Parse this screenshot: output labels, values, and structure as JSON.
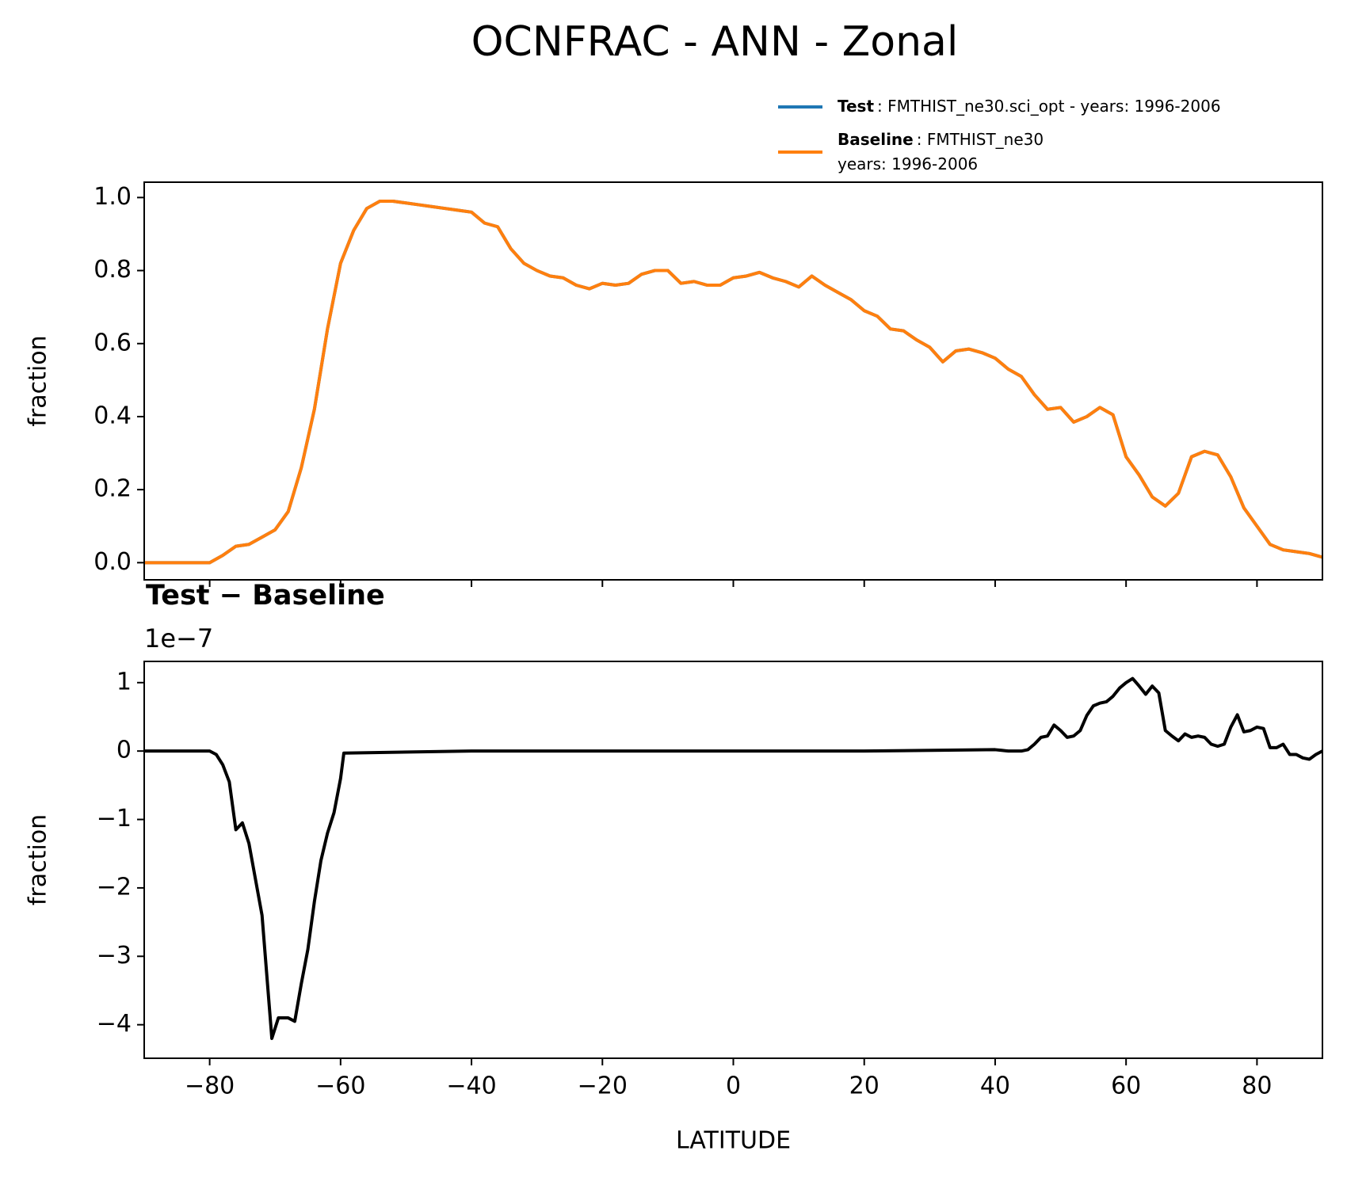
{
  "title": "OCNFRAC - ANN - Zonal",
  "chart_data": [
    {
      "type": "line",
      "ylabel": "fraction",
      "series": [
        {
          "name": "Test",
          "legend_label": [
            ": FMTHIST_ne30.sci_opt - years: 1996-2006"
          ],
          "color": "#1f77b4",
          "values": [
            0,
            0,
            0,
            0,
            0,
            0,
            0.02,
            0.045,
            0.05,
            0.07,
            0.09,
            0.14,
            0.26,
            0.42,
            0.64,
            0.82,
            0.91,
            0.97,
            0.99,
            0.99,
            0.985,
            0.98,
            0.975,
            0.97,
            0.965,
            0.96,
            0.93,
            0.92,
            0.86,
            0.82,
            0.8,
            0.785,
            0.78,
            0.76,
            0.75,
            0.765,
            0.76,
            0.765,
            0.79,
            0.8,
            0.8,
            0.765,
            0.77,
            0.76,
            0.76,
            0.78,
            0.785,
            0.795,
            0.78,
            0.77,
            0.755,
            0.785,
            0.76,
            0.74,
            0.72,
            0.69,
            0.675,
            0.64,
            0.635,
            0.61,
            0.59,
            0.55,
            0.58,
            0.585,
            0.575,
            0.56,
            0.53,
            0.51,
            0.46,
            0.42,
            0.425,
            0.385,
            0.4,
            0.425,
            0.405,
            0.29,
            0.24,
            0.18,
            0.155,
            0.19,
            0.29,
            0.305,
            0.295,
            0.235,
            0.15,
            0.1,
            0.05,
            0.035,
            0.03,
            0.025,
            0.015
          ]
        },
        {
          "name": "Baseline",
          "legend_label": [
            ": FMTHIST_ne30",
            "years: 1996-2006"
          ],
          "color": "#ff7f0e",
          "values": [
            0,
            0,
            0,
            0,
            0,
            0,
            0.02,
            0.045,
            0.05,
            0.07,
            0.09,
            0.14,
            0.26,
            0.42,
            0.64,
            0.82,
            0.91,
            0.97,
            0.99,
            0.99,
            0.985,
            0.98,
            0.975,
            0.97,
            0.965,
            0.96,
            0.93,
            0.92,
            0.86,
            0.82,
            0.8,
            0.785,
            0.78,
            0.76,
            0.75,
            0.765,
            0.76,
            0.765,
            0.79,
            0.8,
            0.8,
            0.765,
            0.77,
            0.76,
            0.76,
            0.78,
            0.785,
            0.795,
            0.78,
            0.77,
            0.755,
            0.785,
            0.76,
            0.74,
            0.72,
            0.69,
            0.675,
            0.64,
            0.635,
            0.61,
            0.59,
            0.55,
            0.58,
            0.585,
            0.575,
            0.56,
            0.53,
            0.51,
            0.46,
            0.42,
            0.425,
            0.385,
            0.4,
            0.425,
            0.405,
            0.29,
            0.24,
            0.18,
            0.155,
            0.19,
            0.29,
            0.305,
            0.295,
            0.235,
            0.15,
            0.1,
            0.05,
            0.035,
            0.03,
            0.025,
            0.015
          ]
        }
      ],
      "x": [
        -90,
        -88,
        -86,
        -84,
        -82,
        -80,
        -78,
        -76,
        -74,
        -72,
        -70,
        -68,
        -66,
        -64,
        -62,
        -60,
        -58,
        -56,
        -54,
        -52,
        -50,
        -48,
        -46,
        -44,
        -42,
        -40,
        -38,
        -36,
        -34,
        -32,
        -30,
        -28,
        -26,
        -24,
        -22,
        -20,
        -18,
        -16,
        -14,
        -12,
        -10,
        -8,
        -6,
        -4,
        -2,
        0,
        2,
        4,
        6,
        8,
        10,
        12,
        14,
        16,
        18,
        20,
        22,
        24,
        26,
        28,
        30,
        32,
        34,
        36,
        38,
        40,
        42,
        44,
        46,
        48,
        50,
        52,
        54,
        56,
        58,
        60,
        62,
        64,
        66,
        68,
        70,
        72,
        74,
        76,
        78,
        80,
        82,
        84,
        86,
        88,
        90
      ],
      "xlim": [
        -90,
        90
      ],
      "xticks": [
        -80,
        -60,
        -40,
        -20,
        0,
        20,
        40,
        60,
        80
      ],
      "xtick_labels": false,
      "ylim": [
        -0.047,
        1.042
      ],
      "yticks": [
        {
          "value": 0,
          "label": "0.0"
        },
        0.2,
        0.4,
        0.6,
        0.8,
        {
          "value": 1,
          "label": "1.0"
        }
      ]
    },
    {
      "type": "line",
      "title": "Test − Baseline",
      "offset_text": "1e−7",
      "ylabel": "fraction",
      "xlabel": "LATITUDE",
      "series": [
        {
          "color": "#000000",
          "values": [
            0,
            0,
            -0.05,
            -0.2,
            -0.45,
            -1.15,
            -1.05,
            -1.35,
            -2.4,
            -4.2,
            -3.9,
            -3.9,
            -3.95,
            -3.4,
            -2.9,
            -2.2,
            -1.6,
            -1.2,
            -0.9,
            -0.4,
            -0.03,
            0,
            0,
            0,
            0,
            0.02,
            0.01,
            0,
            0,
            0.02,
            0.1,
            0.2,
            0.22,
            0.38,
            0.3,
            0.2,
            0.22,
            0.3,
            0.52,
            0.66,
            0.7,
            0.72,
            0.8,
            0.92,
            1.0,
            1.06,
            0.95,
            0.83,
            0.95,
            0.85,
            0.3,
            0.22,
            0.15,
            0.25,
            0.2,
            0.22,
            0.2,
            0.1,
            0.07,
            0.1,
            0.35,
            0.53,
            0.28,
            0.3,
            0.35,
            0.33,
            0.05,
            0.05,
            0.1,
            -0.05,
            -0.05,
            -0.1,
            -0.12,
            -0.05,
            0
          ]
        }
      ],
      "x": [
        -90,
        -80,
        -79,
        -78,
        -77,
        -76,
        -75,
        -74,
        -72,
        -70.5,
        -69.5,
        -68,
        -67,
        -66,
        -65,
        -64,
        -63,
        -62,
        -61,
        -60,
        -59.5,
        -40,
        -20,
        0,
        20,
        40,
        41,
        42,
        44,
        45,
        46,
        47,
        48,
        49,
        50,
        51,
        52,
        53,
        54,
        55,
        56,
        57,
        58,
        59,
        60,
        61,
        62,
        63,
        64,
        65,
        66,
        67,
        68,
        69,
        70,
        71,
        72,
        73,
        74,
        75,
        76,
        77,
        78,
        79,
        80,
        81,
        82,
        83,
        84,
        85,
        86,
        87,
        88,
        89,
        90
      ],
      "xlim": [
        -90,
        90
      ],
      "xticks": [
        {
          "value": -80,
          "label": "−80"
        },
        {
          "value": -60,
          "label": "−60"
        },
        {
          "value": -40,
          "label": "−40"
        },
        {
          "value": -20,
          "label": "−20"
        },
        0,
        20,
        40,
        60,
        80
      ],
      "ylim": [
        -4.49,
        1.31
      ],
      "yticks": [
        {
          "value": -4,
          "label": "−4"
        },
        {
          "value": -3,
          "label": "−3"
        },
        {
          "value": -2,
          "label": "−2"
        },
        {
          "value": -1,
          "label": "−1"
        },
        0,
        1
      ]
    }
  ]
}
